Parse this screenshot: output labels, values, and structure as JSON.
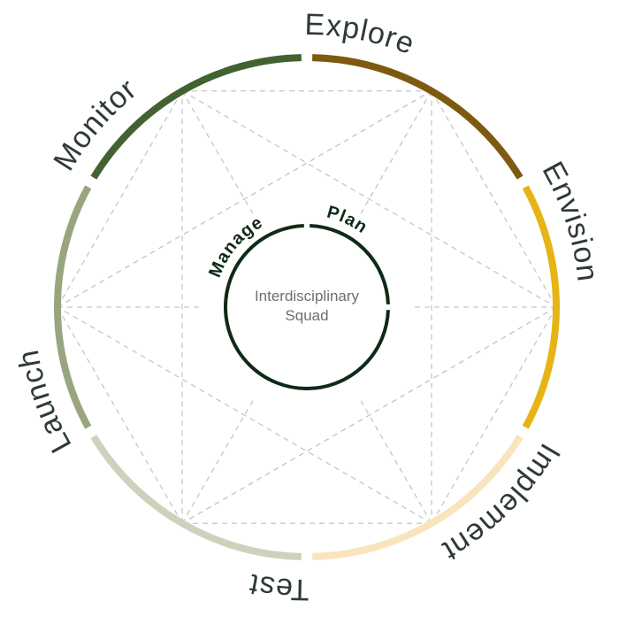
{
  "diagram": {
    "stages": [
      {
        "label": "Explore",
        "color": "#7e5a10"
      },
      {
        "label": "Envision",
        "color": "#e6b415"
      },
      {
        "label": "Implement",
        "color": "#f8e4bd"
      },
      {
        "label": "Test",
        "color": "#ccd3bc"
      },
      {
        "label": "Launch",
        "color": "#99a57e"
      },
      {
        "label": "Monitor",
        "color": "#42632f"
      }
    ],
    "inner_ring": {
      "labels": [
        "Plan",
        "Manage"
      ],
      "color": "#0f2a17"
    },
    "center": {
      "line1": "Interdisciplinary",
      "line2": "Squad"
    },
    "connector_color": "#c4c8c6"
  }
}
